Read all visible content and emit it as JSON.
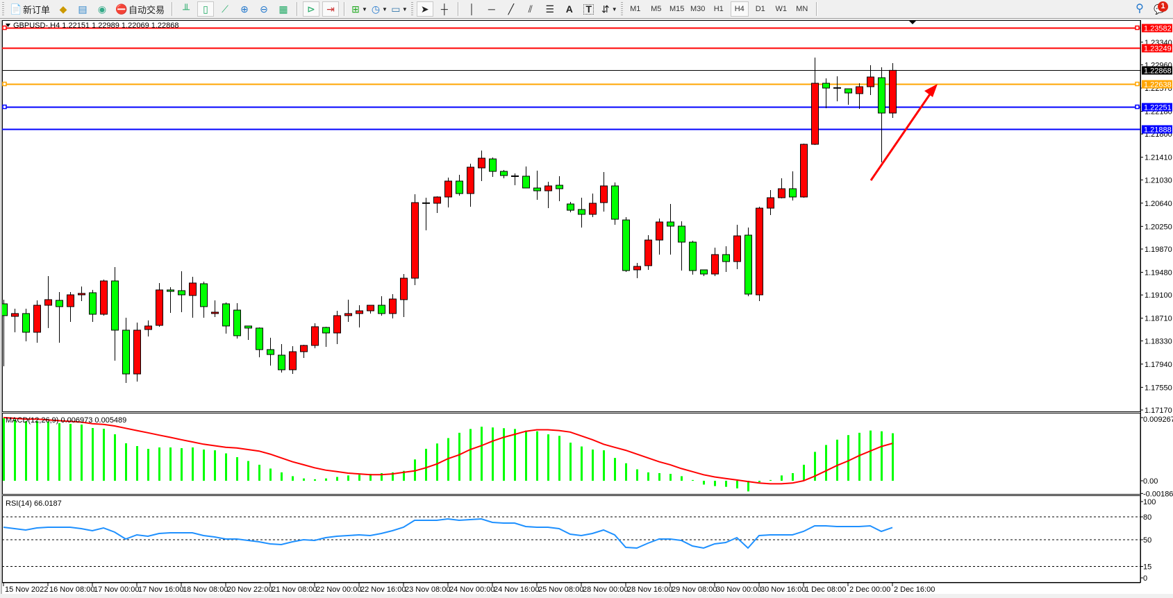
{
  "toolbar": {
    "new_order_label": "新订单",
    "auto_trading_label": "自动交易",
    "timeframes": [
      "M1",
      "M5",
      "M15",
      "M30",
      "H1",
      "H4",
      "D1",
      "W1",
      "MN"
    ],
    "active_timeframe": "H4",
    "notification_count": "1"
  },
  "chart": {
    "header": "GBPUSD-,H4  1.22151 1.22989 1.22069 1.22868",
    "price_ticks": [
      "1.23340",
      "1.22960",
      "1.22570",
      "1.22180",
      "1.21800",
      "1.21410",
      "1.21030",
      "1.20640",
      "1.20250",
      "1.19870",
      "1.19480",
      "1.19100",
      "1.18710",
      "1.18330",
      "1.17940",
      "1.17550",
      "1.17170"
    ],
    "time_labels": [
      "15 Nov 2022",
      "16 Nov 08:00",
      "17 Nov 00:00",
      "17 Nov 16:00",
      "18 Nov 08:00",
      "20 Nov 22:00",
      "21 Nov 08:00",
      "22 Nov 00:00",
      "22 Nov 16:00",
      "23 Nov 08:00",
      "24 Nov 00:00",
      "24 Nov 16:00",
      "25 Nov 08:00",
      "28 Nov 00:00",
      "28 Nov 16:00",
      "29 Nov 08:00",
      "30 Nov 00:00",
      "30 Nov 16:00",
      "1 Dec 08:00",
      "2 Dec 00:00",
      "2 Dec 16:00"
    ],
    "horizontal_lines": [
      {
        "price": 1.23582,
        "label": "1.23582",
        "color": "#ff0000",
        "selected": true
      },
      {
        "price": 1.23249,
        "label": "1.23249",
        "color": "#ff0000",
        "selected": false
      },
      {
        "price": 1.22868,
        "label": "1.22868",
        "color": "#000000",
        "selected": false
      },
      {
        "price": 1.22638,
        "label": "1.22638",
        "color": "#ffa500",
        "selected": true
      },
      {
        "price": 1.22251,
        "label": "1.22251",
        "color": "#0000ff",
        "selected": true
      },
      {
        "price": 1.21888,
        "label": "1.21888",
        "color": "#0000ff",
        "selected": false
      }
    ],
    "bull_color": "#ff0000",
    "bear_color": "#00ff00",
    "arrow_color": "#ff0000"
  },
  "chart_data": {
    "type": "candlestick",
    "symbol": "GBPUSD-",
    "timeframe": "H4",
    "ylim": [
      1.1717,
      1.237
    ],
    "ohlc": [
      [
        1.18951,
        1.19021,
        1.17903,
        1.18753
      ],
      [
        1.18741,
        1.18869,
        1.18474,
        1.18788
      ],
      [
        1.18788,
        1.18869,
        1.18322,
        1.18474
      ],
      [
        1.18474,
        1.19009,
        1.18299,
        1.18927
      ],
      [
        1.18927,
        1.19416,
        1.18544,
        1.19021
      ],
      [
        1.19009,
        1.19149,
        1.18299,
        1.18904
      ],
      [
        1.18904,
        1.19149,
        1.18648,
        1.19102
      ],
      [
        1.19102,
        1.19242,
        1.18997,
        1.19126
      ],
      [
        1.19137,
        1.19184,
        1.18648,
        1.18776
      ],
      [
        1.18776,
        1.19358,
        1.18753,
        1.19335
      ],
      [
        1.19335,
        1.19567,
        1.17997,
        1.18509
      ],
      [
        1.18509,
        1.18718,
        1.17624,
        1.17775
      ],
      [
        1.17775,
        1.18637,
        1.17647,
        1.18509
      ],
      [
        1.1852,
        1.18672,
        1.18404,
        1.18579
      ],
      [
        1.1859,
        1.193,
        1.18567,
        1.19184
      ],
      [
        1.19184,
        1.1923,
        1.18799,
        1.1916
      ],
      [
        1.19172,
        1.19498,
        1.18811,
        1.19102
      ],
      [
        1.19091,
        1.19405,
        1.18718,
        1.193
      ],
      [
        1.19288,
        1.19323,
        1.18718,
        1.18904
      ],
      [
        1.18788,
        1.19009,
        1.1873,
        1.18811
      ],
      [
        1.18951,
        1.18974,
        1.18451,
        1.18579
      ],
      [
        1.18846,
        1.18962,
        1.18369,
        1.18416
      ],
      [
        1.18579,
        1.18579,
        1.18346,
        1.18544
      ],
      [
        1.18544,
        1.18555,
        1.18055,
        1.18183
      ],
      [
        1.18183,
        1.18381,
        1.17915,
        1.18101
      ],
      [
        1.1809,
        1.18276,
        1.17799,
        1.17845
      ],
      [
        1.17845,
        1.18241,
        1.17775,
        1.18148
      ],
      [
        1.18148,
        1.18264,
        1.18043,
        1.18253
      ],
      [
        1.18253,
        1.18625,
        1.18206,
        1.18567
      ],
      [
        1.18555,
        1.18567,
        1.18229,
        1.18462
      ],
      [
        1.18462,
        1.18834,
        1.18276,
        1.18753
      ],
      [
        1.18753,
        1.19021,
        1.18648,
        1.18788
      ],
      [
        1.18788,
        1.18927,
        1.18555,
        1.18834
      ],
      [
        1.18834,
        1.18927,
        1.18788,
        1.18927
      ],
      [
        1.18927,
        1.19079,
        1.18753,
        1.18788
      ],
      [
        1.18788,
        1.19114,
        1.18706,
        1.19032
      ],
      [
        1.19021,
        1.19451,
        1.1873,
        1.19381
      ],
      [
        1.19381,
        1.20789,
        1.19265,
        1.20649
      ],
      [
        1.2064,
        1.20731,
        1.20184,
        1.20638
      ],
      [
        1.20638,
        1.20754,
        1.20475,
        1.20743
      ],
      [
        1.20743,
        1.21068,
        1.20568,
        1.2101
      ],
      [
        1.2101,
        1.21115,
        1.20766,
        1.20801
      ],
      [
        1.20801,
        1.21301,
        1.2058,
        1.21243
      ],
      [
        1.21231,
        1.21522,
        1.2101,
        1.21394
      ],
      [
        1.21382,
        1.21406,
        1.2108,
        1.21173
      ],
      [
        1.21173,
        1.21196,
        1.21057,
        1.21103
      ],
      [
        1.21092,
        1.21138,
        1.2094,
        1.2109
      ],
      [
        1.21092,
        1.21254,
        1.2089,
        1.20894
      ],
      [
        1.20894,
        1.21185,
        1.20696,
        1.20847
      ],
      [
        1.20847,
        1.20999,
        1.20556,
        1.20929
      ],
      [
        1.2094,
        1.21092,
        1.20673,
        1.20882
      ],
      [
        1.20626,
        1.20661,
        1.20486,
        1.20521
      ],
      [
        1.20533,
        1.20731,
        1.20231,
        1.20452
      ],
      [
        1.20452,
        1.20801,
        1.20405,
        1.20638
      ],
      [
        1.20649,
        1.21161,
        1.20498,
        1.20929
      ],
      [
        1.20929,
        1.20987,
        1.20277,
        1.2037
      ],
      [
        1.20358,
        1.20405,
        1.19486,
        1.19509
      ],
      [
        1.19521,
        1.19637,
        1.19381,
        1.19579
      ],
      [
        1.19591,
        1.20103,
        1.19521,
        1.20021
      ],
      [
        1.20021,
        1.20382,
        1.19777,
        1.20324
      ],
      [
        1.20324,
        1.20626,
        1.19777,
        1.20254
      ],
      [
        1.20254,
        1.20335,
        1.19509,
        1.19986
      ],
      [
        1.19986,
        1.2001,
        1.1944,
        1.19509
      ],
      [
        1.19521,
        1.19521,
        1.19416,
        1.19451
      ],
      [
        1.19451,
        1.19893,
        1.19416,
        1.19777
      ],
      [
        1.19777,
        1.19916,
        1.19486,
        1.1966
      ],
      [
        1.1966,
        1.20277,
        1.19533,
        1.20091
      ],
      [
        1.20103,
        1.20231,
        1.19079,
        1.19114
      ],
      [
        1.19102,
        1.2058,
        1.18997,
        1.20556
      ],
      [
        1.20556,
        1.20859,
        1.2044,
        1.20731
      ],
      [
        1.20731,
        1.21057,
        1.20719,
        1.20882
      ],
      [
        1.20882,
        1.21173,
        1.20684,
        1.20743
      ],
      [
        1.20743,
        1.21639,
        1.20731,
        1.21627
      ],
      [
        1.21627,
        1.23082,
        1.21615,
        1.22651
      ],
      [
        1.22651,
        1.22733,
        1.22232,
        1.2257
      ],
      [
        1.22572,
        1.22767,
        1.22348,
        1.2257
      ],
      [
        1.22558,
        1.22558,
        1.2229,
        1.22488
      ],
      [
        1.22477,
        1.22651,
        1.2222,
        1.22593
      ],
      [
        1.22593,
        1.22954,
        1.22453,
        1.22756
      ],
      [
        1.22744,
        1.22919,
        1.21324,
        1.22151
      ],
      [
        1.22151,
        1.22989,
        1.22069,
        1.22868
      ]
    ],
    "macd": {
      "label": "MACD(12,26,9) 0.006973 0.005489",
      "axis_labels": [
        "0.009267",
        "0.00",
        "-0.001865"
      ],
      "ylim": [
        -0.001865,
        0.009267
      ],
      "main": [
        0.00916,
        0.00896,
        0.00875,
        0.00875,
        0.0087,
        0.00845,
        0.00835,
        0.00825,
        0.00774,
        0.00763,
        0.00682,
        0.0055,
        0.00509,
        0.00468,
        0.00489,
        0.00489,
        0.00478,
        0.00489,
        0.00458,
        0.00447,
        0.00402,
        0.00346,
        0.0029,
        0.00235,
        0.00179,
        0.00123,
        0.00067,
        0.00034,
        0.00022,
        0.00034,
        0.00056,
        0.00078,
        0.00089,
        0.00101,
        0.00112,
        0.00123,
        0.00145,
        0.00313,
        0.00469,
        0.00547,
        0.00626,
        0.00704,
        0.0076,
        0.00793,
        0.00782,
        0.00771,
        0.0076,
        0.00737,
        0.00726,
        0.00681,
        0.00659,
        0.00559,
        0.00503,
        0.00458,
        0.00447,
        0.00335,
        0.00257,
        0.00168,
        0.00123,
        0.00112,
        0.00101,
        0.00067,
        0.00011,
        -0.00056,
        -0.00078,
        -0.00089,
        -0.00112,
        -0.00156,
        -0.00022,
        0.00011,
        0.00078,
        0.00112,
        0.00235,
        0.00424,
        0.00525,
        0.00603,
        0.0067,
        0.00704,
        0.00737,
        0.00726,
        0.006973
      ],
      "signal": [
        0.00927,
        0.00916,
        0.00905,
        0.00905,
        0.00894,
        0.00882,
        0.00871,
        0.0086,
        0.00838,
        0.00827,
        0.00804,
        0.00771,
        0.00737,
        0.00704,
        0.0067,
        0.00637,
        0.00603,
        0.0057,
        0.00536,
        0.00514,
        0.00491,
        0.0048,
        0.00458,
        0.00436,
        0.00391,
        0.00335,
        0.00279,
        0.00235,
        0.0019,
        0.00156,
        0.00134,
        0.00112,
        0.00101,
        0.00089,
        0.00089,
        0.00101,
        0.00123,
        0.00145,
        0.0019,
        0.00246,
        0.00324,
        0.0038,
        0.00458,
        0.00514,
        0.00581,
        0.00637,
        0.00681,
        0.00726,
        0.00748,
        0.00748,
        0.00737,
        0.00715,
        0.00659,
        0.00603,
        0.00536,
        0.00491,
        0.00447,
        0.00391,
        0.00335,
        0.00279,
        0.00235,
        0.00179,
        0.00134,
        0.00089,
        0.00056,
        0.00034,
        0.00011,
        -0.00011,
        -0.00034,
        -0.00045,
        -0.00045,
        -0.00034,
        0.0,
        0.00067,
        0.00145,
        0.00223,
        0.0029,
        0.00369,
        0.00436,
        0.00503,
        0.005489
      ],
      "main_color": "#00ff00",
      "signal_color": "#ff0000"
    },
    "rsi": {
      "label": "RSI(14) 66.0187",
      "axis_labels": [
        "100",
        "80",
        "50",
        "15",
        "0"
      ],
      "levels": [
        80,
        50,
        15
      ],
      "ylim": [
        0,
        100
      ],
      "color": "#1e90ff",
      "values": [
        66.4,
        64.5,
        62.7,
        65.5,
        66.4,
        66.4,
        66.4,
        64.5,
        61.8,
        65.5,
        60.0,
        50.9,
        56.4,
        54.5,
        58.2,
        59.1,
        59.1,
        59.1,
        55.5,
        53.6,
        50.9,
        50.9,
        49.1,
        47.3,
        44.5,
        43.6,
        47.3,
        50.0,
        49.1,
        52.7,
        54.5,
        55.5,
        56.4,
        55.5,
        58.2,
        61.8,
        66.4,
        75.5,
        75.5,
        75.5,
        77.3,
        75.5,
        76.4,
        77.3,
        72.7,
        71.8,
        71.8,
        67.3,
        66.4,
        66.4,
        64.5,
        57.3,
        55.5,
        58.2,
        62.7,
        56.4,
        40.0,
        39.1,
        45.5,
        50.9,
        50.9,
        49.1,
        41.8,
        39.1,
        44.5,
        46.4,
        52.7,
        39.1,
        55.5,
        56.4,
        56.4,
        56.4,
        60.9,
        68.2,
        68.2,
        67.3,
        67.3,
        67.3,
        68.2,
        60.9,
        66.02
      ]
    }
  }
}
